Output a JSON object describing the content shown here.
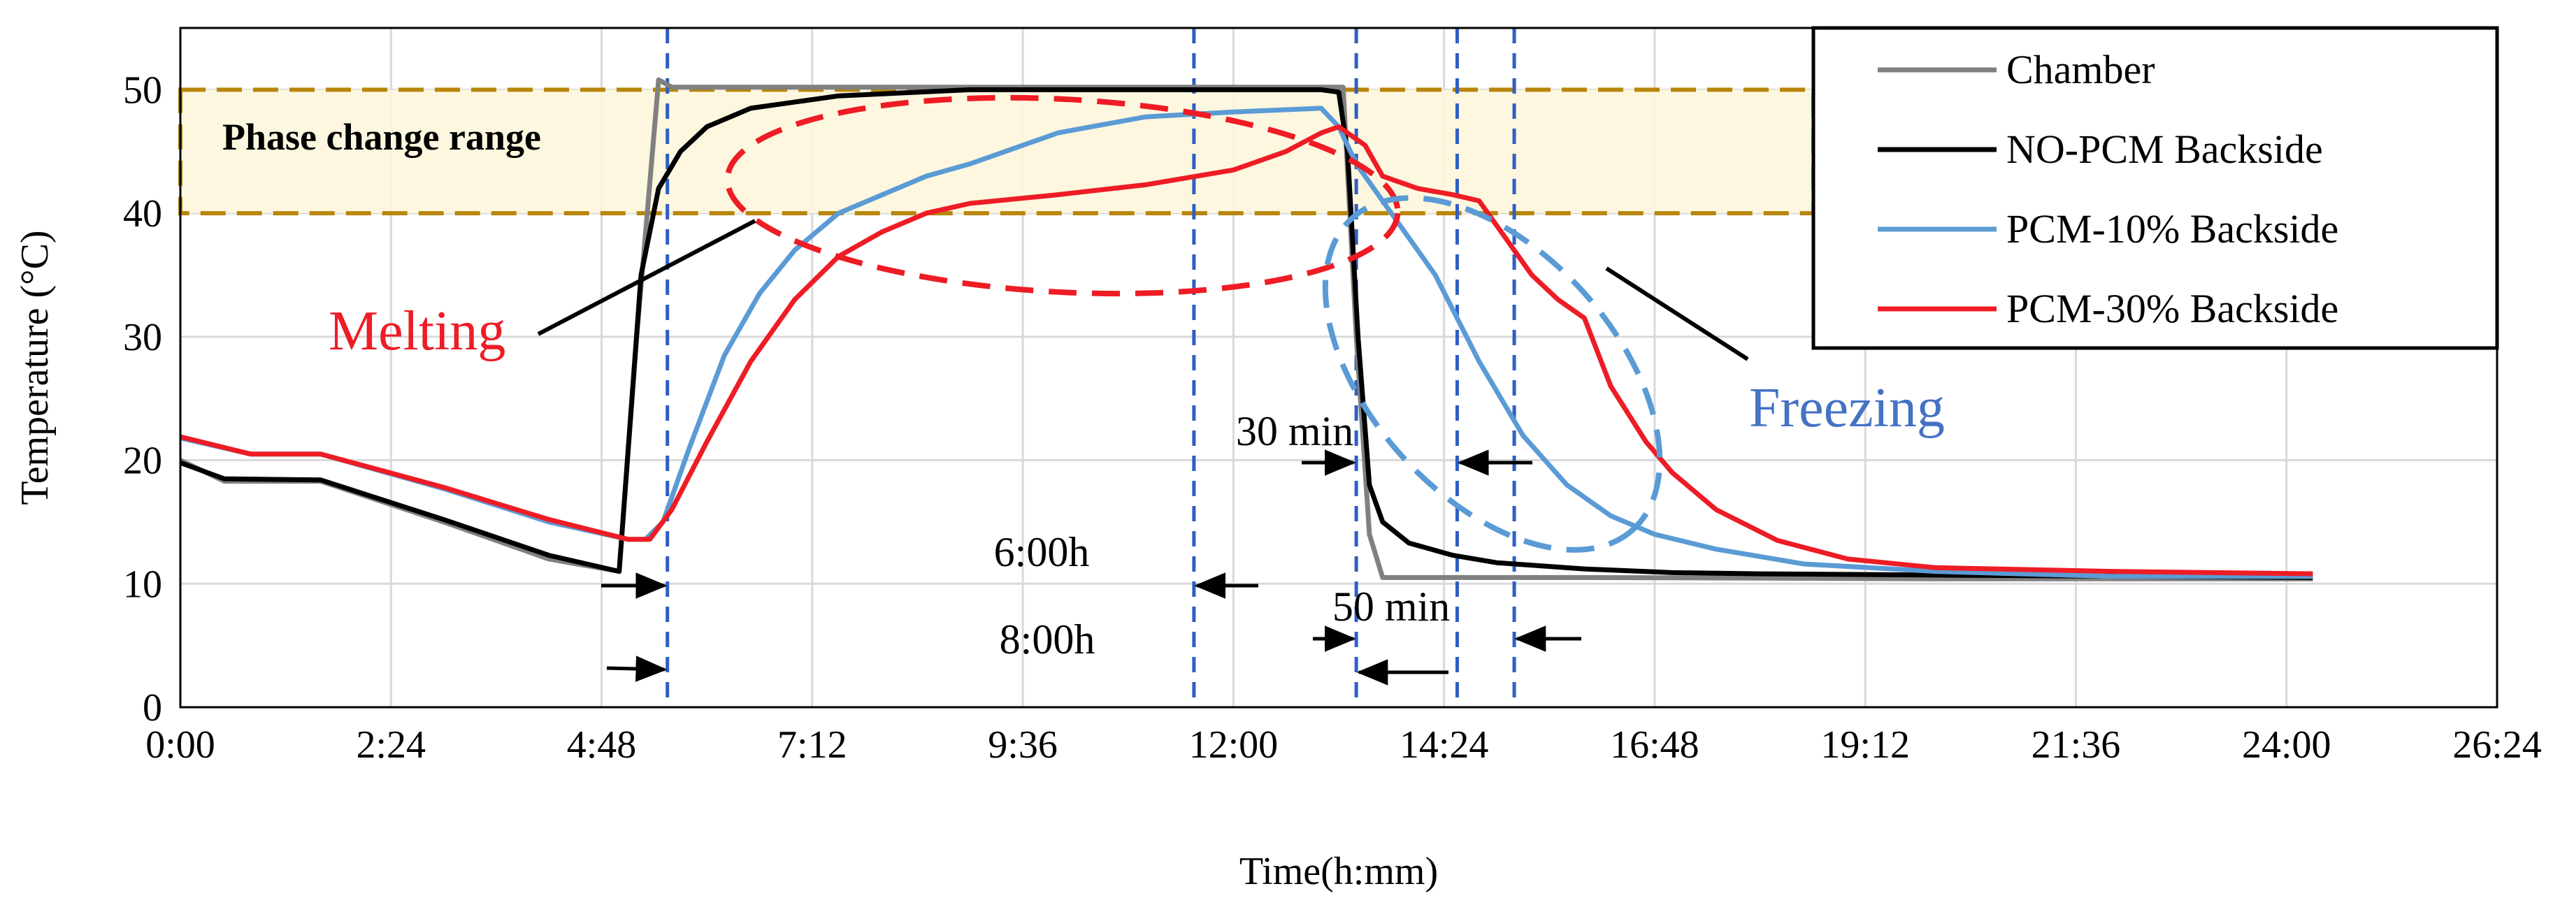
{
  "chart_data": {
    "type": "line",
    "xlabel": "Time(h:mm)",
    "ylabel": "Temperature (°C)",
    "xlim": [
      0,
      26.4
    ],
    "ylim": [
      0,
      55
    ],
    "x_ticks": [
      {
        "value": 0,
        "label": "0:00"
      },
      {
        "value": 2.4,
        "label": "2:24"
      },
      {
        "value": 4.8,
        "label": "4:48"
      },
      {
        "value": 7.2,
        "label": "7:12"
      },
      {
        "value": 9.6,
        "label": "9:36"
      },
      {
        "value": 12.0,
        "label": "12:00"
      },
      {
        "value": 14.4,
        "label": "14:24"
      },
      {
        "value": 16.8,
        "label": "16:48"
      },
      {
        "value": 19.2,
        "label": "19:12"
      },
      {
        "value": 21.6,
        "label": "21:36"
      },
      {
        "value": 24.0,
        "label": "24:00"
      },
      {
        "value": 26.4,
        "label": "26:24"
      }
    ],
    "y_ticks": [
      {
        "value": 0,
        "label": "0"
      },
      {
        "value": 10,
        "label": "10"
      },
      {
        "value": 20,
        "label": "20"
      },
      {
        "value": 30,
        "label": "30"
      },
      {
        "value": 40,
        "label": "40"
      },
      {
        "value": 50,
        "label": "50"
      }
    ],
    "grid": true,
    "legend_position": "top-right",
    "series": [
      {
        "name": "Chamber",
        "color": "#808080",
        "points": [
          [
            0,
            20
          ],
          [
            0.5,
            18.3
          ],
          [
            1.6,
            18.3
          ],
          [
            3,
            15
          ],
          [
            4.2,
            12
          ],
          [
            5,
            11
          ],
          [
            5.2,
            30
          ],
          [
            5.45,
            50.8
          ],
          [
            5.6,
            50.2
          ],
          [
            8,
            50.2
          ],
          [
            13,
            50.2
          ],
          [
            13.25,
            50.2
          ],
          [
            13.4,
            30
          ],
          [
            13.55,
            14
          ],
          [
            13.7,
            10.5
          ],
          [
            16,
            10.5
          ],
          [
            20,
            10.4
          ],
          [
            24.3,
            10.4
          ]
        ]
      },
      {
        "name": "NO-PCM Backside",
        "color": "#000000",
        "points": [
          [
            0,
            19.8
          ],
          [
            0.5,
            18.5
          ],
          [
            1.6,
            18.4
          ],
          [
            3,
            15.2
          ],
          [
            4.2,
            12.3
          ],
          [
            5,
            11
          ],
          [
            5.25,
            35
          ],
          [
            5.45,
            42
          ],
          [
            5.7,
            45
          ],
          [
            6,
            47
          ],
          [
            6.5,
            48.5
          ],
          [
            7.5,
            49.5
          ],
          [
            9,
            50
          ],
          [
            13,
            50
          ],
          [
            13.2,
            49.8
          ],
          [
            13.3,
            45
          ],
          [
            13.42,
            30
          ],
          [
            13.55,
            18
          ],
          [
            13.7,
            15
          ],
          [
            14,
            13.3
          ],
          [
            14.5,
            12.3
          ],
          [
            15,
            11.7
          ],
          [
            16,
            11.2
          ],
          [
            17,
            10.9
          ],
          [
            18,
            10.8
          ],
          [
            20,
            10.7
          ],
          [
            24.3,
            10.5
          ]
        ]
      },
      {
        "name": "PCM-10% Backside",
        "color": "#5B9BD5",
        "points": [
          [
            0,
            21.8
          ],
          [
            0.8,
            20.5
          ],
          [
            1.6,
            20.5
          ],
          [
            3,
            17.7
          ],
          [
            4.2,
            15
          ],
          [
            5.1,
            13.6
          ],
          [
            5.3,
            13.6
          ],
          [
            5.5,
            15
          ],
          [
            5.8,
            21
          ],
          [
            6.2,
            28.5
          ],
          [
            6.6,
            33.5
          ],
          [
            7,
            37
          ],
          [
            7.5,
            40
          ],
          [
            8,
            41.5
          ],
          [
            8.5,
            43
          ],
          [
            9,
            44
          ],
          [
            10,
            46.5
          ],
          [
            11,
            47.8
          ],
          [
            12,
            48.2
          ],
          [
            13,
            48.5
          ],
          [
            13.2,
            47
          ],
          [
            13.4,
            44
          ],
          [
            13.8,
            40
          ],
          [
            14.3,
            35
          ],
          [
            14.8,
            28
          ],
          [
            15.3,
            22
          ],
          [
            15.8,
            18
          ],
          [
            16.3,
            15.5
          ],
          [
            16.8,
            14
          ],
          [
            17.5,
            12.8
          ],
          [
            18.5,
            11.6
          ],
          [
            20,
            11
          ],
          [
            22,
            10.6
          ],
          [
            24.3,
            10.6
          ]
        ]
      },
      {
        "name": "PCM-30% Backside",
        "color": "#EE1C25",
        "points": [
          [
            0,
            21.9
          ],
          [
            0.8,
            20.5
          ],
          [
            1.6,
            20.5
          ],
          [
            3,
            17.8
          ],
          [
            4.2,
            15.2
          ],
          [
            5.1,
            13.6
          ],
          [
            5.35,
            13.6
          ],
          [
            5.6,
            16
          ],
          [
            6,
            21.5
          ],
          [
            6.5,
            28
          ],
          [
            7,
            33
          ],
          [
            7.5,
            36.5
          ],
          [
            8,
            38.5
          ],
          [
            8.5,
            40
          ],
          [
            9,
            40.8
          ],
          [
            10,
            41.5
          ],
          [
            11,
            42.3
          ],
          [
            12,
            43.5
          ],
          [
            12.6,
            45
          ],
          [
            13,
            46.5
          ],
          [
            13.2,
            47
          ],
          [
            13.5,
            45.5
          ],
          [
            13.7,
            43
          ],
          [
            14.1,
            42
          ],
          [
            14.5,
            41.5
          ],
          [
            14.8,
            41
          ],
          [
            15.1,
            38
          ],
          [
            15.4,
            35
          ],
          [
            15.7,
            33
          ],
          [
            16,
            31.5
          ],
          [
            16.3,
            26
          ],
          [
            16.7,
            21.5
          ],
          [
            17,
            19
          ],
          [
            17.5,
            16
          ],
          [
            18.2,
            13.5
          ],
          [
            19,
            12
          ],
          [
            20,
            11.3
          ],
          [
            22,
            11
          ],
          [
            24.3,
            10.8
          ]
        ]
      }
    ],
    "annotations": {
      "band_label": "Phase change range",
      "band_range": [
        40,
        50
      ],
      "melting_label": "Melting",
      "freezing_label": "Freezing",
      "dim_6h": "6:00h",
      "dim_8h": "8:00h",
      "dim_30": "30 min",
      "dim_50": "50 min"
    }
  }
}
